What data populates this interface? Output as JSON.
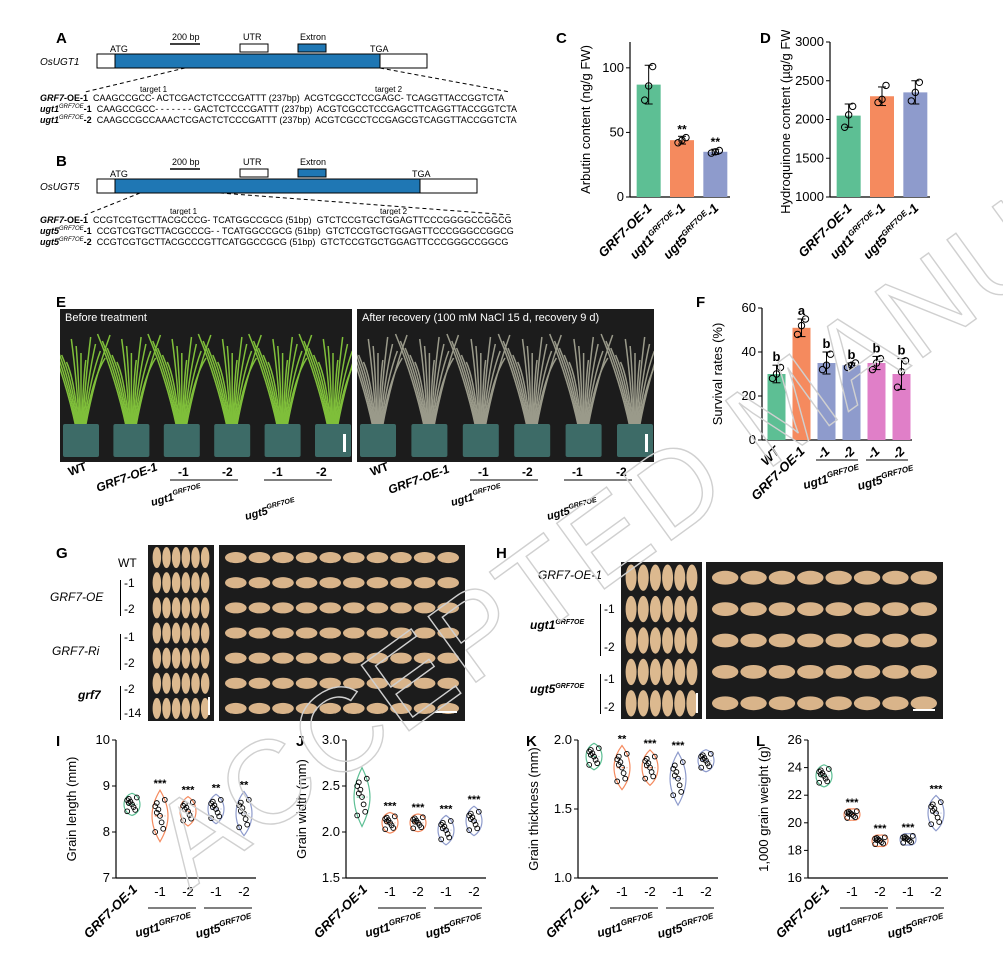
{
  "panel_labels": [
    "A",
    "B",
    "C",
    "D",
    "E",
    "F",
    "G",
    "H",
    "I",
    "J",
    "K",
    "L"
  ],
  "panelA": {
    "gene": "OsUGT1",
    "atg": "ATG",
    "tga": "TGA",
    "scale": "200 bp",
    "utr": "UTR",
    "extron": "Extron",
    "target1": "target 1",
    "target2": "target 2",
    "rows": [
      {
        "label": "GRF7",
        "suffix": "-OE-1",
        "seq1": "CAAGCCGCC- ACTCGACTCTCCCGATTT (237bp)",
        "seq2": "ACGTCGCCTCCGAGC- TCAGGTTACCGGTCTA"
      },
      {
        "label": "ugt1",
        "sup": "GRF7OE",
        "suffix": "-1",
        "seq1": "CAAGCCGCC- - - - - - - GACTCTCCCGATTT (237bp)",
        "seq2": "ACGTCGCCTCCGAGCTTCAGGTTACCGGTCTA"
      },
      {
        "label": "ugt1",
        "sup": "GRF7OE",
        "suffix": "-2",
        "seq1": "CAAGCCGCCAAACTCGACTCTCCCGATTT (237bp)",
        "seq2": "ACGTCGCCTCCGAGCGTCAGGTTACCGGTCTA"
      }
    ]
  },
  "panelB": {
    "gene": "OsUGT5",
    "atg": "ATG",
    "tga": "TGA",
    "scale": "200 bp",
    "utr": "UTR",
    "extron": "Extron",
    "target1": "target 1",
    "target2": "target 2",
    "rows": [
      {
        "label": "GRF7",
        "suffix": "-OE-1",
        "seq1": "CCGTCGTGCTTACGCCCG- TCATGGCCGCG (51bp)",
        "seq2": "GTCTCCGTGCTGGAGTTCCCGGGGCCGGCG"
      },
      {
        "label": "ugt5",
        "sup": "GRF7OE",
        "suffix": "-1",
        "seq1": "CCGTCGTGCTTACGCCCG- - TCATGGCCGCG (51bp)",
        "seq2": "GTCTCCGTGCTGGAGTTCCCGGGCCGGCG"
      },
      {
        "label": "ugt5",
        "sup": "GRF7OE",
        "suffix": "-2",
        "seq1": "CCGTCGTGCTTACGCCCGTTCATGGCCGCG (51bp)",
        "seq2": "GTCTCCGTGCTGGAGTTCCCGGGCCGGCG"
      }
    ]
  },
  "panelE": {
    "before": "Before treatment",
    "after": "After recovery (100 mM NaCl 15 d, recovery 9 d)",
    "wt": "WT",
    "oe": "GRF7-OE-1",
    "m1": "-1",
    "m2": "-2",
    "ugt1": "ugt1",
    "ugt5": "ugt5",
    "sup": "GRF7OE"
  },
  "panelG": {
    "rows": [
      "WT",
      "GRF7-OE",
      "GRF7-Ri",
      "grf7"
    ],
    "nums": [
      "-1",
      "-2",
      "-1",
      "-2",
      "-2",
      "-14"
    ]
  },
  "panelH": {
    "rows": [
      "GRF7-OE-1",
      "ugt1",
      "ugt5"
    ],
    "sup": "GRF7OE",
    "nums": [
      "-1",
      "-2",
      "-1",
      "-2"
    ]
  },
  "chart_data": [
    {
      "id": "C",
      "type": "bar",
      "ylabel": "Arbutin content (ng/g FW)",
      "ylim": [
        0,
        120
      ],
      "yticks": [
        0,
        50,
        100
      ],
      "categories": [
        "GRF7-OE-1",
        "ugt1GRF7OE-1",
        "ugt5GRF7OE-1"
      ],
      "values": [
        87,
        44,
        35
      ],
      "err": [
        15,
        3,
        2
      ],
      "colors": [
        "#5DBF94",
        "#F58A5E",
        "#8E9BCC"
      ],
      "sig": [
        "",
        "**",
        "**"
      ],
      "points": [
        [
          75,
          86,
          101
        ],
        [
          42,
          44,
          46
        ],
        [
          34,
          35,
          36
        ]
      ]
    },
    {
      "id": "D",
      "type": "bar",
      "ylabel": "Hydroquinone content (µg/g FW)",
      "ylim": [
        1000,
        3000
      ],
      "yticks": [
        1000,
        1500,
        2000,
        2500,
        3000
      ],
      "categories": [
        "GRF7-OE-1",
        "ugt1GRF7OE-1",
        "ugt5GRF7OE-1"
      ],
      "values": [
        2050,
        2300,
        2350
      ],
      "err": [
        150,
        120,
        150
      ],
      "colors": [
        "#5DBF94",
        "#F58A5E",
        "#8E9BCC"
      ],
      "points": [
        [
          1900,
          2060,
          2170
        ],
        [
          2220,
          2260,
          2440
        ],
        [
          2240,
          2350,
          2480
        ]
      ]
    },
    {
      "id": "F",
      "type": "bar",
      "ylabel": "Survival rates (%)",
      "ylim": [
        0,
        60
      ],
      "yticks": [
        0,
        20,
        40,
        60
      ],
      "categories": [
        "WT",
        "GRF7-OE-1",
        "-1",
        "-2",
        "-1",
        "-2"
      ],
      "values": [
        30,
        51,
        35,
        34,
        35,
        30
      ],
      "err": [
        4,
        4,
        5,
        1,
        3,
        7
      ],
      "colors": [
        "#5DBF94",
        "#F58A5E",
        "#8E9BCC",
        "#8E9BCC",
        "#E07FC8",
        "#E07FC8"
      ],
      "sig": [
        "b",
        "a",
        "b",
        "b",
        "b",
        "b"
      ],
      "points": [
        [
          28,
          30,
          33
        ],
        [
          48,
          52,
          55
        ],
        [
          32,
          34,
          39
        ],
        [
          33,
          34,
          35
        ],
        [
          32,
          35,
          37
        ],
        [
          24,
          31,
          36
        ]
      ]
    },
    {
      "id": "I",
      "type": "violin",
      "ylabel": "Grain length (mm)",
      "ylim": [
        7,
        10
      ],
      "yticks": [
        7,
        8,
        9,
        10
      ],
      "categories": [
        "GRF7-OE-1",
        "-1",
        "-2",
        "-1",
        "-2"
      ],
      "values": [
        8.6,
        8.35,
        8.45,
        8.5,
        8.4
      ],
      "spread": [
        0.15,
        0.35,
        0.2,
        0.2,
        0.3
      ],
      "colors": [
        "#5DBF94",
        "#F58A5E",
        "#F58A5E",
        "#8E9BCC",
        "#8E9BCC"
      ],
      "sig": [
        "",
        "***",
        "***",
        "**",
        "**"
      ]
    },
    {
      "id": "J",
      "type": "violin",
      "ylabel": "Grain width (mm)",
      "ylim": [
        1.5,
        3.0
      ],
      "yticks": [
        1.5,
        2.0,
        2.5,
        3.0
      ],
      "categories": [
        "GRF7-OE-1",
        "-1",
        "-2",
        "-1",
        "-2"
      ],
      "values": [
        2.38,
        2.1,
        2.1,
        2.02,
        2.12
      ],
      "spread": [
        0.2,
        0.07,
        0.06,
        0.1,
        0.1
      ],
      "colors": [
        "#5DBF94",
        "#F58A5E",
        "#F58A5E",
        "#8E9BCC",
        "#8E9BCC"
      ],
      "sig": [
        "",
        "***",
        "***",
        "***",
        "***"
      ]
    },
    {
      "id": "K",
      "type": "violin",
      "ylabel": "Grain thickness (mm)",
      "ylim": [
        1.0,
        2.0
      ],
      "yticks": [
        1.0,
        1.5,
        2.0
      ],
      "categories": [
        "GRF7-OE-1",
        "-1",
        "-2",
        "-1",
        "-2"
      ],
      "values": [
        1.88,
        1.8,
        1.8,
        1.72,
        1.85
      ],
      "spread": [
        0.06,
        0.1,
        0.08,
        0.12,
        0.05
      ],
      "colors": [
        "#5DBF94",
        "#F58A5E",
        "#F58A5E",
        "#8E9BCC",
        "#8E9BCC"
      ],
      "sig": [
        "",
        "**",
        "***",
        "***",
        ""
      ]
    },
    {
      "id": "L",
      "type": "violin",
      "ylabel": "1,000 grain weight (g)",
      "ylim": [
        16,
        26
      ],
      "yticks": [
        16,
        18,
        20,
        22,
        24,
        26
      ],
      "categories": [
        "GRF7-OE-1",
        "-1",
        "-2",
        "-1",
        "-2"
      ],
      "values": [
        23.4,
        20.6,
        18.7,
        18.8,
        20.7
      ],
      "spread": [
        0.5,
        0.25,
        0.25,
        0.25,
        0.8
      ],
      "colors": [
        "#5DBF94",
        "#F58A5E",
        "#F58A5E",
        "#8E9BCC",
        "#8E9BCC"
      ],
      "sig": [
        "",
        "***",
        "***",
        "***",
        "***"
      ]
    }
  ],
  "xgroup": {
    "ugt1": "ugt1",
    "ugt5": "ugt5",
    "sup": "GRF7OE"
  },
  "watermark": "ACCEPTED MANUSCRIPT"
}
